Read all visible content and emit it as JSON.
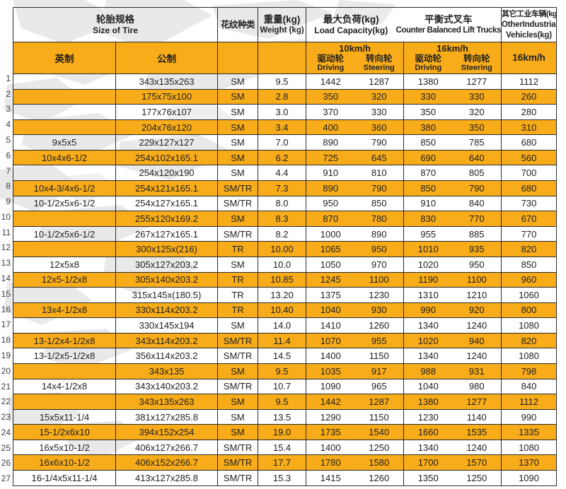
{
  "colors": {
    "accent_orange": "#F8AC1A",
    "border_dark": "#2B2B2B",
    "text_dark": "#1F1F1F",
    "watermark_gray": "#D8D8D8"
  },
  "header": {
    "size_group": {
      "zh": "轮胎规格",
      "en": "Size of Tire"
    },
    "pattern": {
      "zh": "花纹种类"
    },
    "weight": {
      "zh": "重量(kg)",
      "en": "Weight (kg)"
    },
    "load": {
      "zh": "最大负荷(kg)",
      "en": "Load Capacity(kg)"
    },
    "counter": {
      "zh": "平衡式叉车",
      "en": "Counter Balanced Lift Trucks"
    },
    "other": {
      "zh": "其它工业车辆(kg)",
      "en1": "OtherIndustrial",
      "en2": "Vehicles(kg)"
    },
    "sub": {
      "english_units": "英制",
      "metric_units": "公制",
      "speed10": "10km/h",
      "speed16": "16km/h",
      "driving_zh": "驱动轮",
      "steering_zh": "转向轮",
      "driving_en": "Driving",
      "steering_en": "Steering",
      "other_speed": "16km/h"
    }
  },
  "rows": [
    {
      "no": "1",
      "inch": "",
      "metric": "343x135x263",
      "pattern": "SM",
      "weight": "9.5",
      "d10": "1442",
      "s10": "1287",
      "d16": "1380",
      "s16": "1277",
      "other": "1112"
    },
    {
      "no": "2",
      "inch": "",
      "metric": "175x75x100",
      "pattern": "SM",
      "weight": "2.8",
      "d10": "350",
      "s10": "320",
      "d16": "330",
      "s16": "330",
      "other": "260"
    },
    {
      "no": "3",
      "inch": "",
      "metric": "177x76x107",
      "pattern": "SM",
      "weight": "3.0",
      "d10": "370",
      "s10": "330",
      "d16": "350",
      "s16": "320",
      "other": "280"
    },
    {
      "no": "4",
      "inch": "",
      "metric": "204x76x120",
      "pattern": "SM",
      "weight": "3.4",
      "d10": "400",
      "s10": "360",
      "d16": "380",
      "s16": "350",
      "other": "310"
    },
    {
      "no": "5",
      "inch": "9x5x5",
      "metric": "229x127x127",
      "pattern": "SM",
      "weight": "7.0",
      "d10": "890",
      "s10": "790",
      "d16": "850",
      "s16": "785",
      "other": "680"
    },
    {
      "no": "6",
      "inch": "10x4x6-1/2",
      "metric": "254x102x165.1",
      "pattern": "SM",
      "weight": "6.2",
      "d10": "725",
      "s10": "645",
      "d16": "690",
      "s16": "640",
      "other": "560"
    },
    {
      "no": "7",
      "inch": "",
      "metric": "254x120x190",
      "pattern": "SM",
      "weight": "4.4",
      "d10": "910",
      "s10": "810",
      "d16": "870",
      "s16": "805",
      "other": "700"
    },
    {
      "no": "8",
      "inch": "10x4-3/4x6-1/2",
      "metric": "254x121x165.1",
      "pattern": "SM/TR",
      "weight": "7.3",
      "d10": "890",
      "s10": "790",
      "d16": "850",
      "s16": "790",
      "other": "680"
    },
    {
      "no": "9",
      "inch": "10-1/2x5x6-1/2",
      "metric": "254x127x165.1",
      "pattern": "SM/TR",
      "weight": "8.0",
      "d10": "950",
      "s10": "850",
      "d16": "910",
      "s16": "840",
      "other": "730"
    },
    {
      "no": "10",
      "inch": "",
      "metric": "255x120x169.2",
      "pattern": "SM",
      "weight": "8.3",
      "d10": "870",
      "s10": "780",
      "d16": "830",
      "s16": "770",
      "other": "670"
    },
    {
      "no": "11",
      "inch": "10-1/2x5x6-1/2",
      "metric": "267x127x165.1",
      "pattern": "SM/TR",
      "weight": "8.2",
      "d10": "1000",
      "s10": "890",
      "d16": "955",
      "s16": "885",
      "other": "770"
    },
    {
      "no": "12",
      "inch": "",
      "metric": "300x125x(216)",
      "pattern": "TR",
      "weight": "10.00",
      "d10": "1065",
      "s10": "950",
      "d16": "1010",
      "s16": "935",
      "other": "820"
    },
    {
      "no": "13",
      "inch": "12x5x8",
      "metric": "305x127x203.2",
      "pattern": "SM",
      "weight": "10.0",
      "d10": "1050",
      "s10": "970",
      "d16": "1020",
      "s16": "950",
      "other": "850"
    },
    {
      "no": "14",
      "inch": "12x5-1/2x8",
      "metric": "305x140x203.2",
      "pattern": "TR",
      "weight": "10.85",
      "d10": "1245",
      "s10": "1100",
      "d16": "1190",
      "s16": "1100",
      "other": "960"
    },
    {
      "no": "15",
      "inch": "",
      "metric": "315x145x(180.5)",
      "pattern": "TR",
      "weight": "13.20",
      "d10": "1375",
      "s10": "1230",
      "d16": "1310",
      "s16": "1210",
      "other": "1060"
    },
    {
      "no": "16",
      "inch": "13x4-1/2x8",
      "metric": "330x114x203.2",
      "pattern": "TR",
      "weight": "10.40",
      "d10": "1040",
      "s10": "930",
      "d16": "990",
      "s16": "920",
      "other": "800"
    },
    {
      "no": "17",
      "inch": "",
      "metric": "330x145x194",
      "pattern": "SM",
      "weight": "14.0",
      "d10": "1410",
      "s10": "1260",
      "d16": "1340",
      "s16": "1240",
      "other": "1080"
    },
    {
      "no": "18",
      "inch": "13-1/2x4-1/2x8",
      "metric": "343x114x203.2",
      "pattern": "SM/TR",
      "weight": "11.4",
      "d10": "1070",
      "s10": "955",
      "d16": "1020",
      "s16": "940",
      "other": "820"
    },
    {
      "no": "19",
      "inch": "13-1/2x5-1/2x8",
      "metric": "356x114x203.2",
      "pattern": "SM/TR",
      "weight": "14.5",
      "d10": "1400",
      "s10": "1150",
      "d16": "1340",
      "s16": "1240",
      "other": "1080"
    },
    {
      "no": "20",
      "inch": "",
      "metric": "343x135",
      "pattern": "SM",
      "weight": "9.5",
      "d10": "1035",
      "s10": "917",
      "d16": "988",
      "s16": "931",
      "other": "798"
    },
    {
      "no": "21",
      "inch": "14x4-1/2x8",
      "metric": "343x140x203.2",
      "pattern": "SM/TR",
      "weight": "10.7",
      "d10": "1090",
      "s10": "965",
      "d16": "1040",
      "s16": "980",
      "other": "840"
    },
    {
      "no": "22",
      "inch": "",
      "metric": "343x135x263",
      "pattern": "SM",
      "weight": "9.5",
      "d10": "1442",
      "s10": "1287",
      "d16": "1380",
      "s16": "1277",
      "other": "1112"
    },
    {
      "no": "23",
      "inch": "15x5x11-1/4",
      "metric": "381x127x285.8",
      "pattern": "SM",
      "weight": "13.5",
      "d10": "1290",
      "s10": "1150",
      "d16": "1230",
      "s16": "1140",
      "other": "990"
    },
    {
      "no": "24",
      "inch": "15-1/2x6x10",
      "metric": "394x152x254",
      "pattern": "SM",
      "weight": "19.0",
      "d10": "1735",
      "s10": "1540",
      "d16": "1660",
      "s16": "1535",
      "other": "1335"
    },
    {
      "no": "25",
      "inch": "16x5x10-1/2",
      "metric": "406x127x266.7",
      "pattern": "SM/TR",
      "weight": "15.4",
      "d10": "1400",
      "s10": "1250",
      "d16": "1340",
      "s16": "1240",
      "other": "1080"
    },
    {
      "no": "26",
      "inch": "16x6x10-1/2",
      "metric": "406x152x266.7",
      "pattern": "SM/TR",
      "weight": "17.7",
      "d10": "1780",
      "s10": "1580",
      "d16": "1700",
      "s16": "1570",
      "other": "1370"
    },
    {
      "no": "27",
      "inch": "16-1/4x5x11-1/4",
      "metric": "413x127x285.8",
      "pattern": "SM/TR",
      "weight": "15.3",
      "d10": "1415",
      "s10": "1260",
      "d16": "1350",
      "s16": "1250",
      "other": "1090"
    }
  ]
}
